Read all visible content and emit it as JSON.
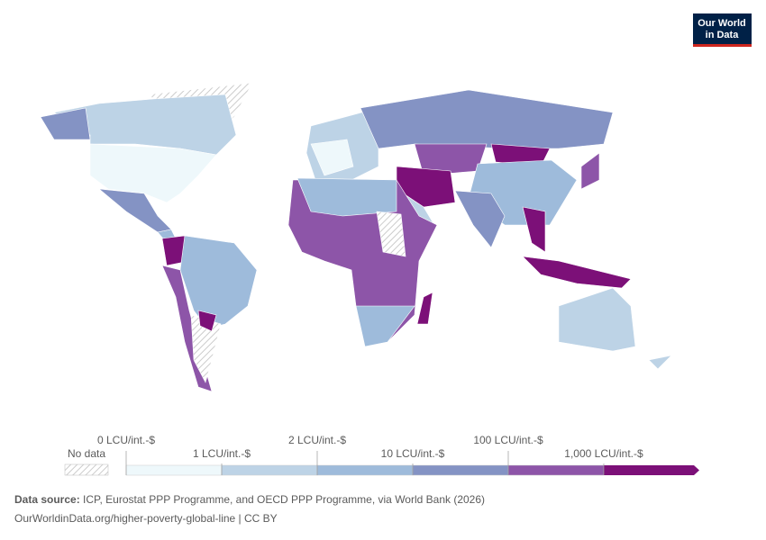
{
  "logo": {
    "lines": [
      "Our World",
      "in Data"
    ]
  },
  "legend": {
    "no_data_label": "No data",
    "ticks": [
      {
        "value": 0,
        "label": "0 LCU/int.-$"
      },
      {
        "value": 1,
        "label": "1 LCU/int.-$"
      },
      {
        "value": 2,
        "label": "2 LCU/int.-$"
      },
      {
        "value": 10,
        "label": "10 LCU/int.-$"
      },
      {
        "value": 100,
        "label": "100 LCU/int.-$"
      },
      {
        "value": 1000,
        "label": "1,000 LCU/int.-$"
      }
    ],
    "colors": [
      "#eef8fb",
      "#bdd3e6",
      "#9ebbdb",
      "#8493c4",
      "#8d55a8",
      "#7c1078"
    ]
  },
  "footer": {
    "source_label": "Data source:",
    "source_text": "ICP, Eurostat PPP Programme, and OECD PPP Programme, via World Bank (2026)",
    "url": "OurWorldinData.org/higher-poverty-global-line | CC BY"
  }
}
